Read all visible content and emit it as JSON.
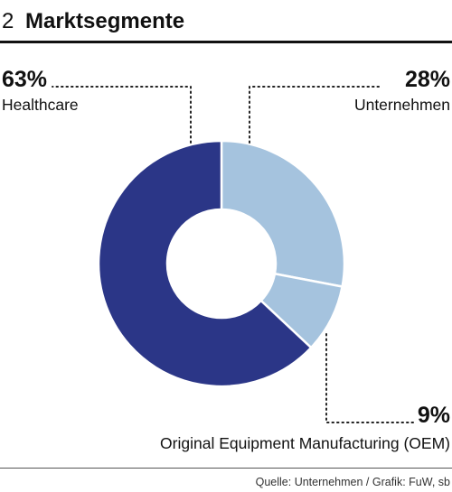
{
  "header": {
    "number": "2",
    "title": "Marktsegmente"
  },
  "chart_data": {
    "type": "pie",
    "donut": true,
    "slices": [
      {
        "label": "Unternehmen",
        "value": 28,
        "value_text": "28%",
        "color": "#a5c3de"
      },
      {
        "label": "Original Equipment Manufacturing (OEM)",
        "value": 9,
        "value_text": "9%",
        "color": "#a5c3de"
      },
      {
        "label": "Healthcare",
        "value": 63,
        "value_text": "63%",
        "color": "#2b3687"
      }
    ],
    "legend": "none"
  },
  "footer": {
    "source": "Quelle: Unternehmen / Grafik: FuW, sb"
  }
}
